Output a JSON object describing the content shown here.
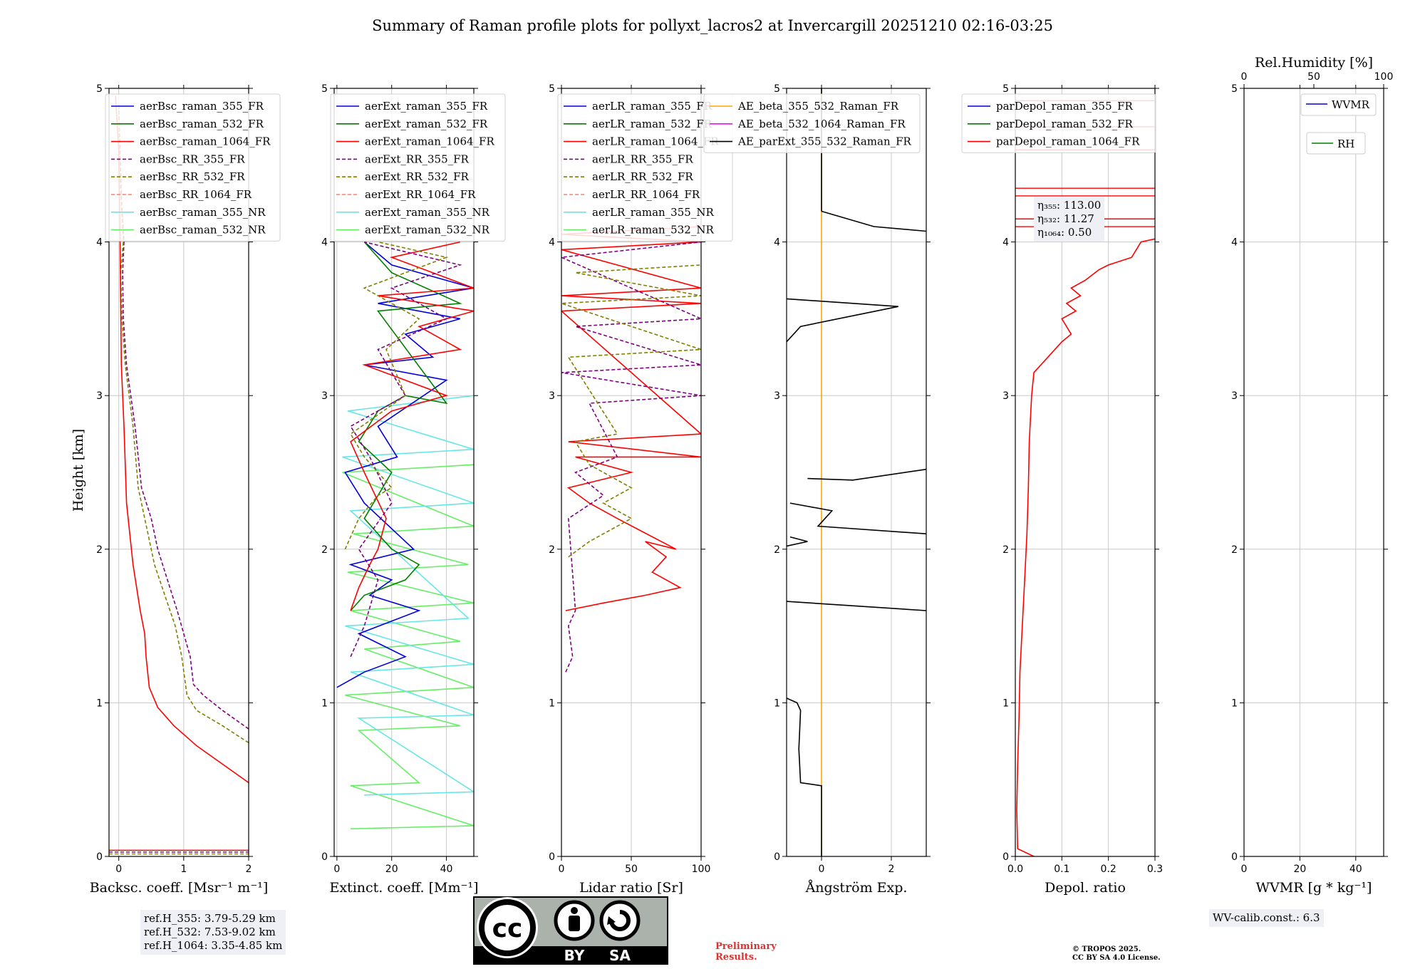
{
  "title": "Summary of Raman profile plots for pollyxt_lacros2 at Invercargill 20251210 02:16-03:25",
  "y_axis_label": "Height [km]",
  "chart_data": [
    {
      "id": "bsc",
      "type": "line",
      "xlabel": "Backsc. coeff. [Msr⁻¹ m⁻¹]",
      "xlim": [
        -0.15,
        2
      ],
      "xticks": [
        0,
        1,
        2
      ],
      "ylim": [
        0,
        5
      ],
      "legend": [
        "aerBsc_raman_355_FR",
        "aerBsc_raman_532_FR",
        "aerBsc_raman_1064_FR",
        "aerBsc_RR_355_FR",
        "aerBsc_RR_532_FR",
        "aerBsc_RR_1064_FR",
        "aerBsc_raman_355_NR",
        "aerBsc_raman_532_NR"
      ],
      "series": [
        {
          "name": "aerBsc_RR_355_FR",
          "color": "#800080",
          "dash": true,
          "x": [
            2.0,
            1.6,
            1.3,
            1.15,
            1.1,
            0.9,
            0.6,
            0.5,
            0.35,
            0.25,
            0.12,
            0.07,
            0.06,
            0.08,
            0.04,
            0.0
          ],
          "y": [
            0.83,
            0.95,
            1.05,
            1.12,
            1.3,
            1.6,
            2.0,
            2.2,
            2.4,
            2.8,
            3.2,
            3.5,
            3.8,
            4.0,
            4.3,
            4.9
          ]
        },
        {
          "name": "aerBsc_RR_532_FR",
          "color": "#808000",
          "dash": true,
          "x": [
            2.0,
            1.6,
            1.2,
            1.05,
            0.97,
            0.87,
            0.75,
            0.55,
            0.45,
            0.3,
            0.22,
            0.1,
            0.05,
            0.03,
            0.07,
            0.02,
            0.0
          ],
          "y": [
            0.74,
            0.85,
            0.95,
            1.05,
            1.3,
            1.5,
            1.65,
            1.9,
            2.1,
            2.4,
            2.8,
            3.2,
            3.5,
            3.8,
            4.0,
            4.4,
            4.9
          ]
        },
        {
          "name": "aerBsc_raman_1064_FR",
          "color": "#ff0000",
          "dash": false,
          "x": [
            2.0,
            1.6,
            1.2,
            0.85,
            0.6,
            0.47,
            0.42,
            0.4,
            0.33,
            0.22,
            0.12,
            0.08,
            0.04,
            0.03,
            0.02,
            0.0,
            -0.05
          ],
          "y": [
            0.48,
            0.6,
            0.72,
            0.85,
            0.97,
            1.1,
            1.3,
            1.45,
            1.6,
            1.9,
            2.3,
            2.8,
            3.2,
            3.6,
            4.0,
            4.6,
            4.95
          ]
        }
      ],
      "annotation": [
        "ref.H_355: 3.79-5.29 km",
        "ref.H_532: 7.53-9.02 km",
        "ref.H_1064: 3.35-4.85 km"
      ]
    },
    {
      "id": "ext",
      "type": "line",
      "xlabel": "Extinct. coeff. [Mm⁻¹]",
      "xlim": [
        -1,
        50
      ],
      "xticks": [
        0,
        20,
        40
      ],
      "ylim": [
        0,
        5
      ],
      "legend": [
        "aerExt_raman_355_FR",
        "aerExt_raman_532_FR",
        "aerExt_raman_1064_FR",
        "aerExt_RR_355_FR",
        "aerExt_RR_532_FR",
        "aerExt_RR_1064_FR",
        "aerExt_raman_355_NR",
        "aerExt_raman_532_NR"
      ],
      "series": [
        {
          "name": "aerExt_raman_532_NR",
          "color": "#66ee66",
          "dash": false,
          "x": [
            5,
            50,
            5,
            30,
            8,
            45,
            3,
            50,
            10,
            45,
            5,
            50,
            4,
            48,
            6,
            50,
            2,
            50
          ],
          "y": [
            0.18,
            0.2,
            0.46,
            0.48,
            0.82,
            0.85,
            1.05,
            1.1,
            1.35,
            1.4,
            1.6,
            1.65,
            1.85,
            1.9,
            2.1,
            2.15,
            2.5,
            2.55
          ]
        },
        {
          "name": "aerExt_raman_355_NR",
          "color": "#66e6e6",
          "dash": false,
          "x": [
            10,
            50,
            8,
            50,
            5,
            50,
            3,
            48,
            5,
            50,
            2,
            50,
            4,
            50
          ],
          "y": [
            0.4,
            0.42,
            0.9,
            0.92,
            1.2,
            1.25,
            1.5,
            1.55,
            2.25,
            2.3,
            2.6,
            2.65,
            2.9,
            3.0
          ]
        },
        {
          "name": "aerExt_raman_355_FR",
          "color": "#0000dd",
          "dash": false,
          "x": [
            0,
            5,
            10,
            25,
            8,
            30,
            12,
            20,
            5,
            28,
            10,
            3,
            22,
            15,
            40,
            10,
            35,
            25,
            45,
            15,
            50,
            20,
            10
          ],
          "y": [
            1.1,
            1.15,
            1.2,
            1.3,
            1.45,
            1.6,
            1.7,
            1.8,
            1.9,
            2.0,
            2.3,
            2.5,
            2.6,
            2.8,
            3.1,
            3.2,
            3.25,
            3.4,
            3.5,
            3.6,
            3.7,
            3.85,
            4.0
          ]
        },
        {
          "name": "aerExt_raman_532_FR",
          "color": "#008000",
          "dash": false,
          "x": [
            5,
            10,
            25,
            30,
            20,
            10,
            20,
            8,
            15,
            25,
            40,
            15,
            45,
            20,
            10
          ],
          "y": [
            1.6,
            1.7,
            1.8,
            1.9,
            2.0,
            2.2,
            2.5,
            2.7,
            2.9,
            3.0,
            2.95,
            3.55,
            3.6,
            3.8,
            4.0
          ]
        },
        {
          "name": "aerExt_raman_1064_FR",
          "color": "#ff0000",
          "dash": false,
          "x": [
            5,
            8,
            12,
            15,
            18,
            10,
            5,
            20,
            40,
            10,
            45,
            30,
            50,
            15,
            50,
            20,
            45
          ],
          "y": [
            1.6,
            1.75,
            1.9,
            2.0,
            2.2,
            2.5,
            2.7,
            2.9,
            3.0,
            3.2,
            3.3,
            3.45,
            3.55,
            3.65,
            3.7,
            3.9,
            4.0
          ]
        },
        {
          "name": "aerExt_RR_355_FR",
          "color": "#800080",
          "dash": true,
          "x": [
            5,
            10,
            15,
            8,
            20,
            12,
            5,
            25,
            15,
            40,
            20,
            45,
            10
          ],
          "y": [
            1.3,
            1.5,
            1.8,
            2.0,
            2.3,
            2.6,
            2.8,
            3.0,
            3.3,
            3.5,
            3.7,
            3.85,
            4.0
          ]
        },
        {
          "name": "aerExt_RR_532_FR",
          "color": "#808000",
          "dash": true,
          "x": [
            3,
            8,
            15,
            20,
            10,
            5,
            25,
            18,
            30,
            10,
            40,
            15
          ],
          "y": [
            2.0,
            2.2,
            2.35,
            2.4,
            2.6,
            2.75,
            3.0,
            3.3,
            3.5,
            3.7,
            3.9,
            4.0
          ]
        }
      ]
    },
    {
      "id": "lr",
      "type": "line",
      "xlabel": "Lidar ratio [Sr]",
      "xlim": [
        0,
        100
      ],
      "xticks": [
        0,
        50,
        100
      ],
      "ylim": [
        0,
        5
      ],
      "legend": [
        "aerLR_raman_355_FR",
        "aerLR_raman_532_FR",
        "aerLR_raman_1064_FR",
        "aerLR_RR_355_FR",
        "aerLR_RR_532_FR",
        "aerLR_RR_1064_FR",
        "aerLR_raman_355_NR",
        "aerLR_raman_532_NR"
      ],
      "series": [
        {
          "name": "aerLR_raman_1064_FR",
          "color": "#ff0000",
          "dash": false,
          "x": [
            3,
            30,
            60,
            85,
            65,
            75,
            60,
            82,
            40,
            20,
            5,
            50,
            10,
            100,
            5,
            100,
            0,
            100,
            0,
            100,
            0,
            100,
            0,
            100
          ],
          "y": [
            1.6,
            1.65,
            1.7,
            1.75,
            1.85,
            1.95,
            2.05,
            2.0,
            2.2,
            2.3,
            2.4,
            2.5,
            2.6,
            2.6,
            2.7,
            2.75,
            3.55,
            3.6,
            3.65,
            3.7,
            3.95,
            4.0,
            4.05,
            4.1
          ]
        },
        {
          "name": "aerLR_RR_355_FR",
          "color": "#800080",
          "dash": true,
          "x": [
            3,
            8,
            5,
            10,
            5,
            30,
            10,
            40,
            20,
            100,
            0,
            100,
            10,
            100,
            0,
            100
          ],
          "y": [
            1.2,
            1.3,
            1.5,
            1.6,
            2.2,
            2.35,
            2.5,
            2.6,
            2.95,
            3.0,
            3.15,
            3.2,
            3.45,
            3.5,
            3.9,
            4.0
          ]
        },
        {
          "name": "aerLR_RR_532_FR",
          "color": "#808000",
          "dash": true,
          "x": [
            5,
            20,
            50,
            30,
            50,
            20,
            10,
            40,
            5,
            100,
            0,
            100,
            10,
            100
          ],
          "y": [
            1.95,
            2.05,
            2.2,
            2.3,
            2.4,
            2.55,
            2.7,
            2.75,
            3.25,
            3.3,
            3.6,
            3.65,
            3.8,
            3.85
          ]
        }
      ]
    },
    {
      "id": "ae",
      "type": "line",
      "xlabel": "Ångström Exp.",
      "xlim": [
        -1,
        3
      ],
      "xticks": [
        0,
        2
      ],
      "ylim": [
        0,
        5
      ],
      "legend": [
        "AE_beta_355_532_Raman_FR",
        "AE_beta_532_1064_Raman_FR",
        "AE_parExt_355_532_Raman_FR"
      ],
      "series": [
        {
          "name": "AE_beta_355_532_Raman_FR",
          "color": "#ffa500",
          "dash": false,
          "x": [
            0,
            0
          ],
          "y": [
            0,
            5
          ]
        },
        {
          "name": "AE_parExt_355_532_Raman_FR",
          "color": "#000000",
          "dash": false,
          "x": [
            0,
            0,
            -0.6,
            -0.65,
            -0.6,
            -0.7,
            -1
          ],
          "y": [
            0,
            0.46,
            0.48,
            0.7,
            0.95,
            1.0,
            1.03
          ]
        }
      ]
    },
    {
      "id": "dep",
      "type": "line",
      "xlabel": "Depol. ratio",
      "xlim": [
        0,
        0.3
      ],
      "xticks": [
        0.0,
        0.1,
        0.2,
        0.3
      ],
      "ylim": [
        0,
        5
      ],
      "legend": [
        "parDepol_raman_355_FR",
        "parDepol_raman_532_FR",
        "parDepol_raman_1064_FR"
      ],
      "series": [
        {
          "name": "parDepol_raman_1064_FR",
          "color": "#ff0000",
          "dash": false,
          "x": [
            0.04,
            0.005,
            0.003,
            0.005,
            0.008,
            0.01,
            0.015,
            0.02,
            0.025,
            0.028,
            0.03,
            0.035,
            0.04,
            0.07,
            0.1,
            0.12,
            0.1,
            0.13,
            0.11,
            0.14,
            0.12,
            0.15,
            0.18,
            0.2,
            0.25,
            0.27,
            0.3
          ],
          "y": [
            0.0,
            0.05,
            0.3,
            0.6,
            0.9,
            1.2,
            1.5,
            1.8,
            2.1,
            2.4,
            2.7,
            3.0,
            3.15,
            3.25,
            3.35,
            3.4,
            3.5,
            3.55,
            3.6,
            3.65,
            3.7,
            3.75,
            3.82,
            3.85,
            3.9,
            4.0,
            4.02
          ]
        }
      ],
      "annotation": [
        "η₃₅₅: 113.00",
        "η₅₃₂: 11.27",
        "η₁₀₆₄: 0.50"
      ]
    },
    {
      "id": "wv",
      "type": "line",
      "xlabel": "WVMR [g * kg⁻¹]",
      "xlim": [
        0,
        50
      ],
      "xticks": [
        0,
        20,
        40
      ],
      "ylim": [
        0,
        5
      ],
      "top_xlabel": "Rel.Humidity [%]",
      "top_xticks": [
        0,
        50,
        100
      ],
      "legend": [
        "WVMR",
        "RH"
      ],
      "series": [],
      "annotation": [
        "WV-calib.const.: 6.3"
      ]
    }
  ],
  "footer": {
    "license_cc": "cc",
    "license_by": "BY",
    "license_sa": "SA",
    "preliminary": [
      "Preliminary",
      "Results."
    ],
    "copyright": [
      "© TROPOS 2025.",
      "CC BY SA 4.0 License."
    ]
  },
  "colors": {
    "blue": "#0000dd",
    "green": "#008000",
    "red": "#ff0000",
    "purple": "#800080",
    "olive": "#808000",
    "salmon": "#fa8072",
    "cyan": "#66e6e6",
    "lightgreen": "#66ee66",
    "orange": "#ffa500",
    "magenta": "#ff00ff",
    "black": "#000000"
  }
}
